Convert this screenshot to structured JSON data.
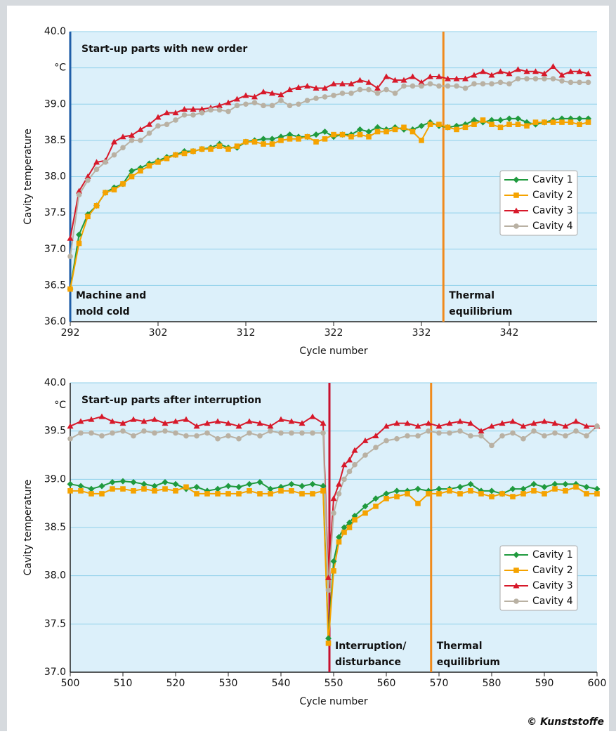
{
  "credit": "© Kunststoffe",
  "chart_data": [
    {
      "type": "line",
      "title": "Start-up parts with new order",
      "xlabel": "Cycle number",
      "ylabel": "Cavity temperature",
      "xlim": [
        292,
        352
      ],
      "xticks": [
        292,
        302,
        312,
        322,
        332,
        342
      ],
      "ylim": [
        36,
        40
      ],
      "yticks": [
        {
          "value": 36,
          "label": "36.0"
        },
        36.5,
        {
          "value": 37,
          "label": "37.0"
        },
        37.5,
        {
          "value": 38,
          "label": "38.0"
        },
        38.5,
        {
          "value": 39,
          "label": "39.0"
        },
        {
          "value": 39.5,
          "label": "°C"
        },
        {
          "value": 40,
          "label": "40.0"
        }
      ],
      "grid": true,
      "legend": "right",
      "x": [
        292,
        293,
        294,
        295,
        296,
        297,
        298,
        299,
        300,
        301,
        302,
        303,
        304,
        305,
        306,
        307,
        308,
        309,
        310,
        311,
        312,
        313,
        314,
        315,
        316,
        317,
        318,
        319,
        320,
        321,
        322,
        323,
        324,
        325,
        326,
        327,
        328,
        329,
        330,
        331,
        332,
        333,
        334,
        335,
        336,
        337,
        338,
        339,
        340,
        341,
        342,
        343,
        344,
        345,
        346,
        347,
        348,
        349,
        350,
        351
      ],
      "series": [
        {
          "name": "Cavity 1",
          "color": "#1f9a3e",
          "marker": "diamond",
          "values": [
            36.45,
            37.2,
            37.48,
            37.6,
            37.78,
            37.85,
            37.9,
            38.08,
            38.12,
            38.18,
            38.22,
            38.27,
            38.3,
            38.35,
            38.35,
            38.38,
            38.4,
            38.45,
            38.4,
            38.4,
            38.48,
            38.5,
            38.52,
            38.52,
            38.55,
            38.58,
            38.55,
            38.55,
            38.58,
            38.62,
            38.55,
            38.58,
            38.58,
            38.65,
            38.62,
            38.68,
            38.65,
            38.68,
            38.65,
            38.65,
            38.7,
            38.75,
            38.7,
            38.68,
            38.7,
            38.72,
            38.78,
            38.75,
            38.78,
            38.78,
            38.8,
            38.8,
            38.75,
            38.72,
            38.75,
            38.78,
            38.8,
            38.8,
            38.8,
            38.8
          ]
        },
        {
          "name": "Cavity 2",
          "color": "#f5a300",
          "marker": "square",
          "values": [
            36.45,
            37.08,
            37.45,
            37.6,
            37.78,
            37.82,
            37.9,
            38.0,
            38.08,
            38.15,
            38.2,
            38.25,
            38.3,
            38.32,
            38.35,
            38.38,
            38.38,
            38.42,
            38.38,
            38.42,
            38.48,
            38.48,
            38.45,
            38.45,
            38.5,
            38.52,
            38.52,
            38.55,
            38.48,
            38.52,
            38.58,
            38.58,
            38.55,
            38.58,
            38.55,
            38.62,
            38.62,
            38.65,
            38.68,
            38.62,
            38.5,
            38.72,
            38.72,
            38.68,
            38.65,
            38.68,
            38.72,
            38.78,
            38.72,
            38.68,
            38.72,
            38.72,
            38.7,
            38.75,
            38.75,
            38.75,
            38.75,
            38.75,
            38.72,
            38.75
          ]
        },
        {
          "name": "Cavity 3",
          "color": "#d7192a",
          "marker": "triangle",
          "values": [
            37.15,
            37.8,
            38.0,
            38.2,
            38.22,
            38.48,
            38.55,
            38.57,
            38.65,
            38.72,
            38.82,
            38.88,
            38.88,
            38.93,
            38.93,
            38.93,
            38.95,
            38.98,
            39.02,
            39.07,
            39.12,
            39.1,
            39.17,
            39.15,
            39.13,
            39.2,
            39.23,
            39.25,
            39.22,
            39.22,
            39.28,
            39.28,
            39.28,
            39.33,
            39.3,
            39.22,
            39.38,
            39.33,
            39.33,
            39.38,
            39.3,
            39.38,
            39.38,
            39.35,
            39.35,
            39.35,
            39.4,
            39.45,
            39.4,
            39.45,
            39.42,
            39.48,
            39.45,
            39.45,
            39.42,
            39.52,
            39.4,
            39.45,
            39.45,
            39.42
          ]
        },
        {
          "name": "Cavity 4",
          "color": "#b9b1a3",
          "marker": "circle",
          "values": [
            36.9,
            37.75,
            37.95,
            38.1,
            38.2,
            38.3,
            38.4,
            38.5,
            38.5,
            38.6,
            38.7,
            38.72,
            38.78,
            38.85,
            38.85,
            38.88,
            38.92,
            38.92,
            38.9,
            38.98,
            39.0,
            39.02,
            38.98,
            38.98,
            39.05,
            38.98,
            39.0,
            39.05,
            39.08,
            39.1,
            39.12,
            39.15,
            39.15,
            39.2,
            39.2,
            39.15,
            39.2,
            39.15,
            39.25,
            39.25,
            39.25,
            39.28,
            39.25,
            39.25,
            39.25,
            39.22,
            39.28,
            39.28,
            39.28,
            39.3,
            39.28,
            39.35,
            39.35,
            39.35,
            39.35,
            39.35,
            39.32,
            39.3,
            39.3,
            39.3
          ]
        }
      ],
      "annotations": [
        {
          "x": 292,
          "color": "#1f5ea8",
          "label": [
            "Machine and",
            "mold cold"
          ]
        },
        {
          "x": 334.5,
          "color": "#f08a1c",
          "label": [
            "Thermal",
            "equilibrium"
          ]
        }
      ]
    },
    {
      "type": "line",
      "title": "Start-up parts after interruption",
      "y_unit": "°C",
      "xlabel": "Cycle number",
      "ylabel": "Cavity temperature",
      "xlim": [
        500,
        600
      ],
      "xticks": [
        500,
        510,
        520,
        530,
        540,
        550,
        560,
        570,
        580,
        590,
        600
      ],
      "ylim": [
        37,
        40
      ],
      "yticks": [
        {
          "value": 37,
          "label": "37.0"
        },
        37.5,
        {
          "value": 38,
          "label": "38.0"
        },
        38.5,
        {
          "value": 39,
          "label": "39.0"
        },
        39.5,
        {
          "value": 40,
          "label": "40.0"
        }
      ],
      "grid": true,
      "legend": "lower right",
      "x": [
        500,
        502,
        504,
        506,
        508,
        510,
        512,
        514,
        516,
        518,
        520,
        522,
        524,
        526,
        528,
        530,
        532,
        534,
        536,
        538,
        540,
        542,
        544,
        546,
        548,
        549,
        550,
        551,
        552,
        553,
        554,
        556,
        558,
        560,
        562,
        564,
        566,
        568,
        570,
        572,
        574,
        576,
        578,
        580,
        582,
        584,
        586,
        588,
        590,
        592,
        594,
        596,
        598,
        600
      ],
      "series": [
        {
          "name": "Cavity 1",
          "color": "#1f9a3e",
          "marker": "diamond",
          "values": [
            38.95,
            38.93,
            38.9,
            38.93,
            38.97,
            38.98,
            38.97,
            38.95,
            38.93,
            38.97,
            38.95,
            38.9,
            38.92,
            38.88,
            38.9,
            38.93,
            38.92,
            38.95,
            38.97,
            38.9,
            38.92,
            38.95,
            38.93,
            38.95,
            38.93,
            37.35,
            38.15,
            38.4,
            38.5,
            38.55,
            38.62,
            38.72,
            38.8,
            38.85,
            38.88,
            38.88,
            38.9,
            38.88,
            38.9,
            38.9,
            38.92,
            38.95,
            38.88,
            38.88,
            38.85,
            38.9,
            38.9,
            38.95,
            38.92,
            38.95,
            38.95,
            38.95,
            38.92,
            38.9
          ]
        },
        {
          "name": "Cavity 2",
          "color": "#f5a300",
          "marker": "square",
          "values": [
            38.88,
            38.88,
            38.85,
            38.85,
            38.9,
            38.9,
            38.88,
            38.9,
            38.88,
            38.9,
            38.88,
            38.92,
            38.85,
            38.85,
            38.85,
            38.85,
            38.85,
            38.88,
            38.85,
            38.85,
            38.88,
            38.88,
            38.85,
            38.85,
            38.88,
            37.3,
            38.05,
            38.35,
            38.45,
            38.5,
            38.58,
            38.65,
            38.72,
            38.8,
            38.82,
            38.85,
            38.75,
            38.85,
            38.85,
            38.88,
            38.85,
            38.88,
            38.85,
            38.82,
            38.85,
            38.82,
            38.85,
            38.88,
            38.85,
            38.9,
            38.88,
            38.92,
            38.85,
            38.85
          ]
        },
        {
          "name": "Cavity 3",
          "color": "#d7192a",
          "marker": "triangle",
          "values": [
            39.55,
            39.6,
            39.62,
            39.65,
            39.6,
            39.58,
            39.62,
            39.6,
            39.62,
            39.58,
            39.6,
            39.62,
            39.55,
            39.58,
            39.6,
            39.58,
            39.55,
            39.6,
            39.58,
            39.55,
            39.62,
            39.6,
            39.58,
            39.65,
            39.58,
            37.98,
            38.8,
            38.95,
            39.15,
            39.2,
            39.3,
            39.4,
            39.45,
            39.55,
            39.58,
            39.58,
            39.55,
            39.58,
            39.55,
            39.58,
            39.6,
            39.58,
            39.5,
            39.55,
            39.58,
            39.6,
            39.55,
            39.58,
            39.6,
            39.58,
            39.55,
            39.6,
            39.55,
            39.55
          ]
        },
        {
          "name": "Cavity 4",
          "color": "#b9b1a3",
          "marker": "circle",
          "values": [
            39.42,
            39.48,
            39.48,
            39.45,
            39.48,
            39.5,
            39.45,
            39.5,
            39.48,
            39.5,
            39.48,
            39.45,
            39.45,
            39.48,
            39.42,
            39.45,
            39.42,
            39.48,
            39.45,
            39.5,
            39.48,
            39.48,
            39.48,
            39.48,
            39.48,
            37.85,
            38.65,
            38.85,
            39.0,
            39.08,
            39.15,
            39.25,
            39.33,
            39.4,
            39.42,
            39.45,
            39.45,
            39.5,
            39.48,
            39.48,
            39.5,
            39.45,
            39.45,
            39.35,
            39.45,
            39.48,
            39.42,
            39.5,
            39.45,
            39.48,
            39.45,
            39.5,
            39.45,
            39.55
          ]
        }
      ],
      "annotations": [
        {
          "x": 549.2,
          "color": "#c8102e",
          "label": [
            "Interruption/",
            "disturbance"
          ]
        },
        {
          "x": 568.5,
          "color": "#f08a1c",
          "label": [
            "Thermal",
            "equilibrium"
          ]
        }
      ]
    }
  ]
}
